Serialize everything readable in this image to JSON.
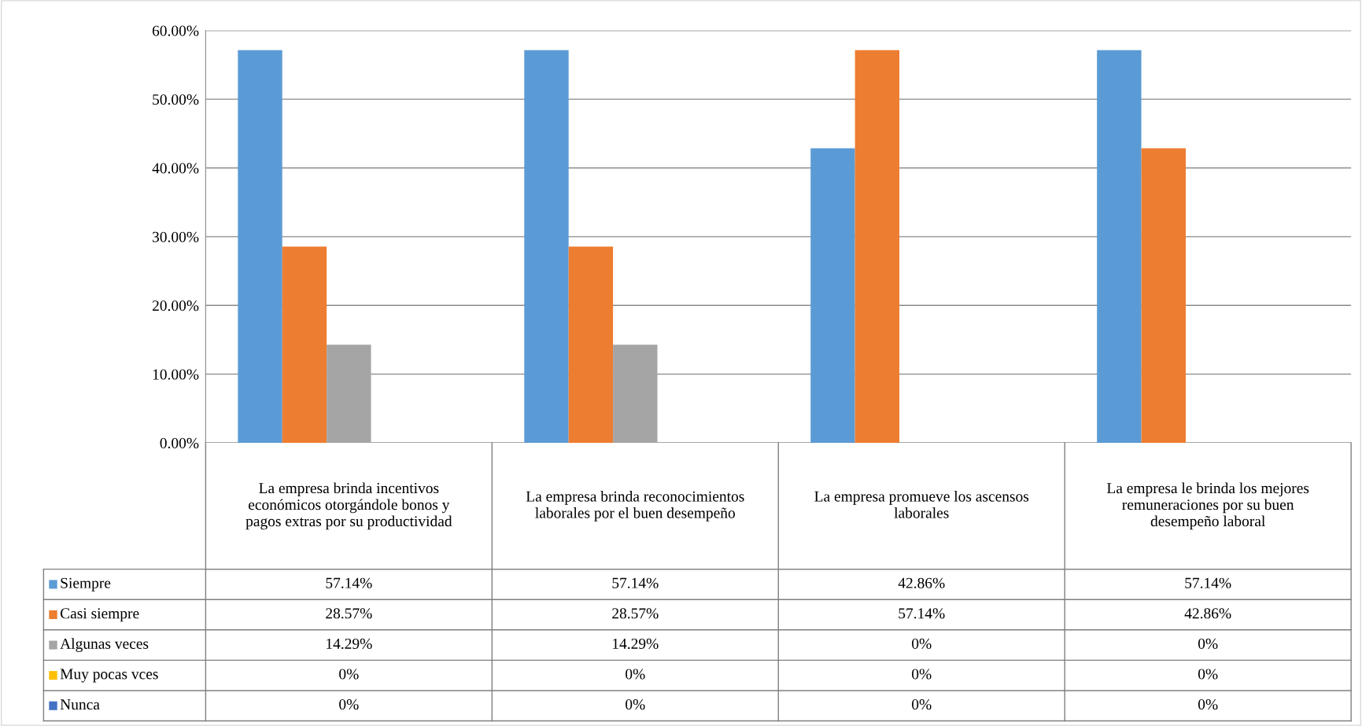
{
  "chart_data": {
    "type": "bar",
    "categories": [
      "La empresa brinda incentivos económicos otorgándole bonos y pagos extras por su productividad",
      "La empresa brinda reconocimientos laborales por el buen desempeño",
      "La empresa promueve los ascensos laborales",
      "La empresa le brinda los mejores remuneraciones por su buen desempeño laboral"
    ],
    "series": [
      {
        "name": "Siempre",
        "color": "#5b9bd5",
        "values": [
          57.14,
          57.14,
          42.86,
          57.14
        ],
        "value_labels": [
          "57.14%",
          "57.14%",
          "42.86%",
          "57.14%"
        ]
      },
      {
        "name": "Casi siempre",
        "color": "#ed7d31",
        "values": [
          28.57,
          28.57,
          57.14,
          42.86
        ],
        "value_labels": [
          "28.57%",
          "28.57%",
          "57.14%",
          "42.86%"
        ]
      },
      {
        "name": "Algunas veces",
        "color": "#a5a5a5",
        "values": [
          14.29,
          14.29,
          0,
          0
        ],
        "value_labels": [
          "14.29%",
          "14.29%",
          "0%",
          "0%"
        ]
      },
      {
        "name": "Muy pocas vces",
        "color": "#ffc000",
        "values": [
          0,
          0,
          0,
          0
        ],
        "value_labels": [
          "0%",
          "0%",
          "0%",
          "0%"
        ]
      },
      {
        "name": "Nunca",
        "color": "#4472c4",
        "values": [
          0,
          0,
          0,
          0
        ],
        "value_labels": [
          "0%",
          "0%",
          "0%",
          "0%"
        ]
      }
    ],
    "ylim": [
      0,
      60
    ],
    "yticks": [
      {
        "value": 0,
        "label": "0.00%"
      },
      {
        "value": 10,
        "label": "10.00%"
      },
      {
        "value": 20,
        "label": "20.00%"
      },
      {
        "value": 30,
        "label": "30.00%"
      },
      {
        "value": 40,
        "label": "40.00%"
      },
      {
        "value": 50,
        "label": "50.00%"
      },
      {
        "value": 60,
        "label": "60.00%"
      }
    ],
    "grid": "y",
    "legend": "bottom left"
  }
}
